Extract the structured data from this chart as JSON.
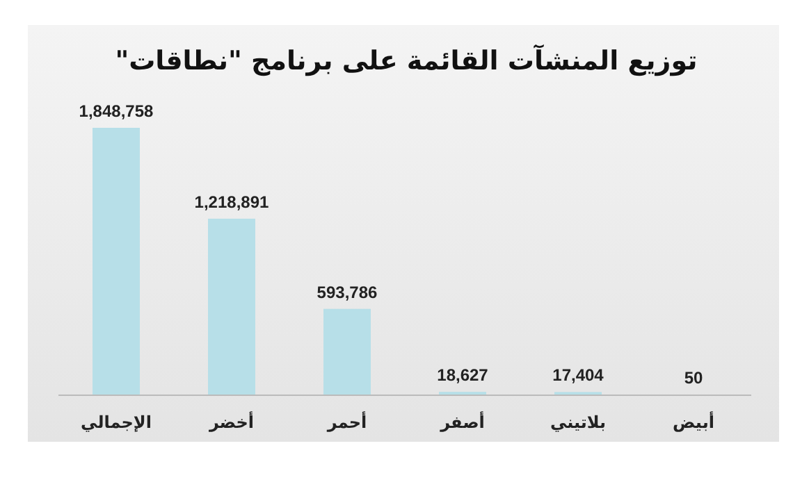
{
  "chart_data": {
    "type": "bar",
    "title": "توزيع المنشآت القائمة على برنامج \"نطاقات\"",
    "categories": [
      "الإجمالي",
      "أخضر",
      "أحمر",
      "أصفر",
      "بلاتيني",
      "أبيض"
    ],
    "values": [
      1848758,
      1218891,
      593786,
      18627,
      17404,
      50
    ],
    "value_labels": [
      "1,848,758",
      "1,218,891",
      "593,786",
      "18,627",
      "17,404",
      "50"
    ],
    "color": "#b7dfe8"
  }
}
